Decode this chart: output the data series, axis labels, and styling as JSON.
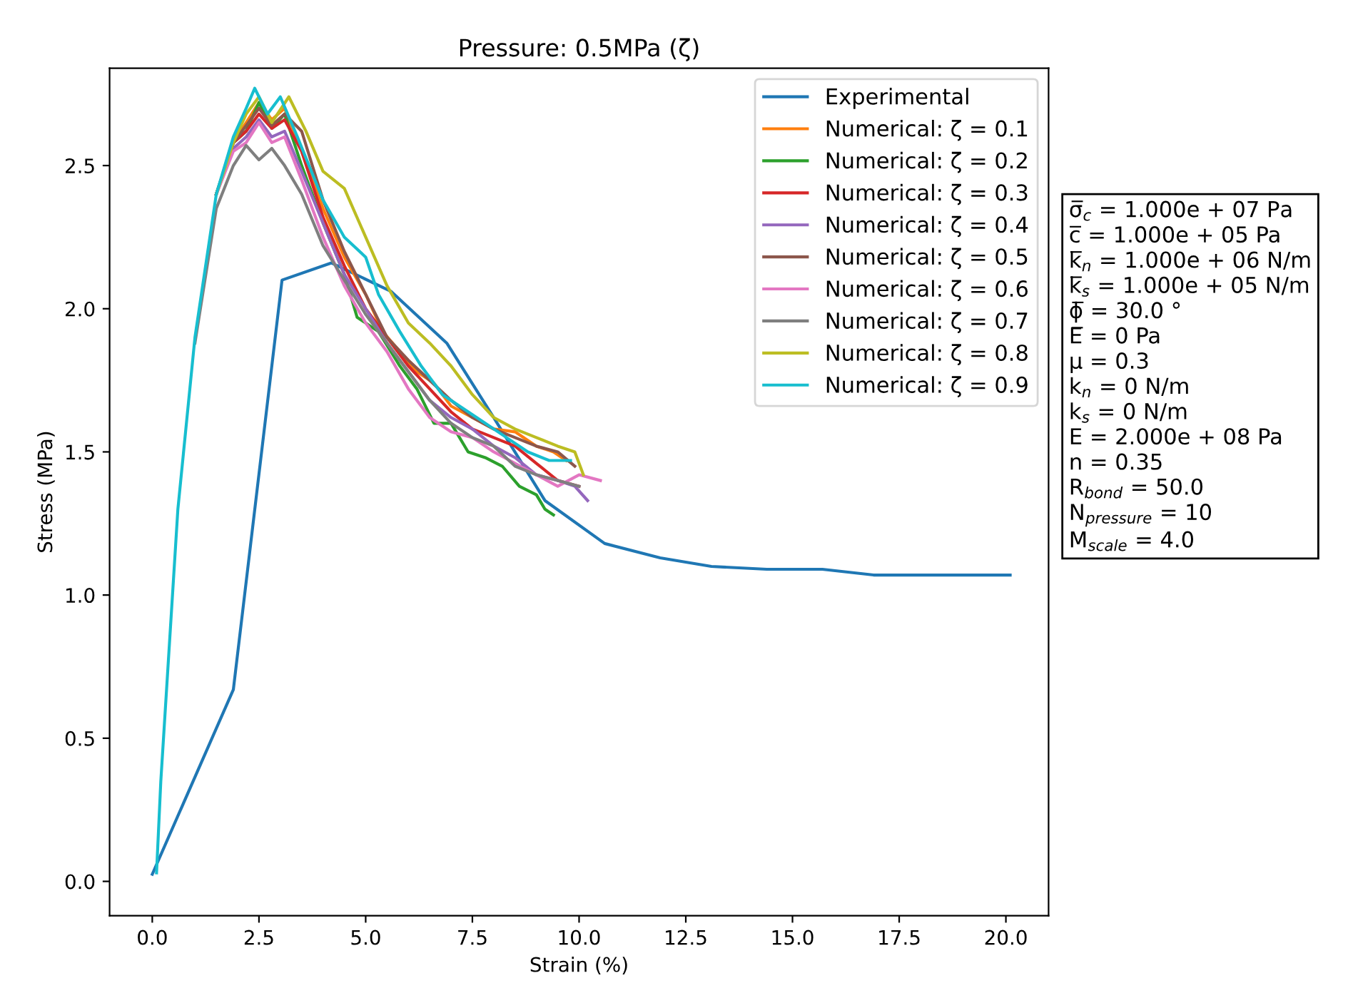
{
  "chart_data": {
    "type": "line",
    "title": "Pressure: 0.5MPa (ζ)",
    "xlabel": "Strain (%)",
    "ylabel": "Stress (MPa)",
    "xlim": [
      -1.0,
      21.0
    ],
    "ylim": [
      -0.12,
      2.84
    ],
    "xticks": [
      {
        "value": 0,
        "label": "0.0"
      },
      {
        "value": 2.5,
        "label": "2.5"
      },
      {
        "value": 5,
        "label": "5.0"
      },
      {
        "value": 7.5,
        "label": "7.5"
      },
      {
        "value": 10,
        "label": "10.0"
      },
      {
        "value": 12.5,
        "label": "12.5"
      },
      {
        "value": 15,
        "label": "15.0"
      },
      {
        "value": 17.5,
        "label": "17.5"
      },
      {
        "value": 20,
        "label": "20.0"
      }
    ],
    "yticks": [
      {
        "value": 0,
        "label": "0.0"
      },
      {
        "value": 0.5,
        "label": "0.5"
      },
      {
        "value": 1,
        "label": "1.0"
      },
      {
        "value": 1.5,
        "label": "1.5"
      },
      {
        "value": 2,
        "label": "2.0"
      },
      {
        "value": 2.5,
        "label": "2.5"
      }
    ],
    "grid": false,
    "legend": "top right",
    "marker": "none",
    "line_style": "solid",
    "series": [
      {
        "name": "Experimental",
        "color": "#1f77b4",
        "x": [
          0.0,
          1.9,
          3.04,
          4.2,
          5.6,
          6.9,
          8.0,
          9.2,
          10.6,
          11.9,
          13.1,
          14.4,
          15.7,
          16.9,
          18.3,
          19.5,
          20.1
        ],
        "values": [
          0.025,
          0.67,
          2.1,
          2.16,
          2.06,
          1.88,
          1.62,
          1.33,
          1.18,
          1.13,
          1.1,
          1.09,
          1.09,
          1.07,
          1.07,
          1.07,
          1.07
        ]
      },
      {
        "name": "Numerical: ζ = 0.1",
        "color": "#ff7f0e",
        "x": [
          1.5,
          1.9,
          2.2,
          2.5,
          2.8,
          3.1,
          3.5,
          4.0,
          4.5,
          5.0,
          5.4,
          5.8,
          6.2,
          6.6,
          7.0,
          7.5,
          8.0,
          8.5,
          9.0,
          9.4,
          9.7
        ],
        "values": [
          2.4,
          2.58,
          2.65,
          2.72,
          2.66,
          2.7,
          2.55,
          2.35,
          2.18,
          2.05,
          1.92,
          1.85,
          1.78,
          1.74,
          1.66,
          1.62,
          1.58,
          1.57,
          1.52,
          1.5,
          1.47
        ]
      },
      {
        "name": "Numerical: ζ = 0.2",
        "color": "#2ca02c",
        "x": [
          1.5,
          1.9,
          2.2,
          2.5,
          2.8,
          3.1,
          3.5,
          4.0,
          4.5,
          4.8,
          5.3,
          5.8,
          6.2,
          6.6,
          7.0,
          7.4,
          7.8,
          8.2,
          8.6,
          9.0,
          9.2,
          9.4
        ],
        "values": [
          2.4,
          2.58,
          2.62,
          2.72,
          2.63,
          2.68,
          2.5,
          2.3,
          2.12,
          1.97,
          1.92,
          1.8,
          1.72,
          1.6,
          1.6,
          1.5,
          1.48,
          1.45,
          1.38,
          1.35,
          1.3,
          1.28
        ]
      },
      {
        "name": "Numerical: ζ = 0.3",
        "color": "#d62728",
        "x": [
          1.5,
          1.9,
          2.2,
          2.5,
          2.8,
          3.1,
          3.5,
          4.0,
          4.5,
          5.0,
          5.5,
          6.0,
          6.5,
          7.0,
          7.5,
          8.0,
          8.5,
          9.0,
          9.5,
          10.0
        ],
        "values": [
          2.4,
          2.58,
          2.62,
          2.68,
          2.63,
          2.66,
          2.55,
          2.32,
          2.15,
          2.0,
          1.9,
          1.8,
          1.72,
          1.64,
          1.58,
          1.55,
          1.52,
          1.46,
          1.4,
          1.38
        ]
      },
      {
        "name": "Numerical: ζ = 0.4",
        "color": "#9467bd",
        "x": [
          1.5,
          1.9,
          2.2,
          2.5,
          2.8,
          3.1,
          3.5,
          4.0,
          4.5,
          5.0,
          5.5,
          6.0,
          6.5,
          7.0,
          7.5,
          8.0,
          8.5,
          9.0,
          9.5,
          9.9,
          10.2
        ],
        "values": [
          2.4,
          2.56,
          2.6,
          2.66,
          2.6,
          2.62,
          2.48,
          2.3,
          2.12,
          2.0,
          1.88,
          1.78,
          1.68,
          1.62,
          1.58,
          1.52,
          1.48,
          1.42,
          1.4,
          1.38,
          1.33
        ]
      },
      {
        "name": "Numerical: ζ = 0.5",
        "color": "#8c564b",
        "x": [
          1.5,
          1.9,
          2.2,
          2.5,
          2.8,
          3.1,
          3.5,
          4.0,
          4.5,
          5.0,
          5.5,
          6.0,
          6.5,
          7.0,
          7.5,
          8.0,
          8.5,
          9.0,
          9.5,
          9.9
        ],
        "values": [
          2.4,
          2.58,
          2.64,
          2.7,
          2.64,
          2.68,
          2.62,
          2.38,
          2.2,
          2.05,
          1.9,
          1.82,
          1.75,
          1.68,
          1.62,
          1.58,
          1.55,
          1.52,
          1.5,
          1.45
        ]
      },
      {
        "name": "Numerical: ζ = 0.6",
        "color": "#e377c2",
        "x": [
          1.5,
          1.9,
          2.2,
          2.5,
          2.8,
          3.1,
          3.5,
          4.0,
          4.5,
          5.0,
          5.5,
          6.0,
          6.5,
          7.0,
          7.5,
          8.0,
          8.5,
          9.0,
          9.5,
          10.0,
          10.5
        ],
        "values": [
          2.4,
          2.55,
          2.58,
          2.65,
          2.58,
          2.6,
          2.45,
          2.25,
          2.08,
          1.95,
          1.85,
          1.72,
          1.62,
          1.57,
          1.55,
          1.5,
          1.46,
          1.42,
          1.38,
          1.42,
          1.4
        ]
      },
      {
        "name": "Numerical: ζ = 0.7",
        "color": "#7f7f7f",
        "x": [
          1.0,
          1.5,
          1.9,
          2.2,
          2.5,
          2.8,
          3.1,
          3.5,
          4.0,
          4.5,
          5.0,
          5.5,
          6.0,
          6.5,
          7.0,
          7.5,
          8.0,
          8.5,
          9.0,
          9.5,
          10.0
        ],
        "values": [
          1.88,
          2.35,
          2.5,
          2.57,
          2.52,
          2.56,
          2.5,
          2.4,
          2.22,
          2.1,
          1.98,
          1.88,
          1.78,
          1.68,
          1.6,
          1.55,
          1.52,
          1.45,
          1.42,
          1.4,
          1.38
        ]
      },
      {
        "name": "Numerical: ζ = 0.8",
        "color": "#bcbd22",
        "x": [
          1.5,
          1.9,
          2.2,
          2.5,
          2.8,
          3.2,
          3.6,
          4.0,
          4.5,
          5.0,
          5.5,
          6.0,
          6.5,
          7.0,
          7.5,
          8.0,
          8.5,
          9.0,
          9.5,
          9.9,
          10.1
        ],
        "values": [
          2.4,
          2.58,
          2.68,
          2.74,
          2.65,
          2.74,
          2.62,
          2.48,
          2.42,
          2.25,
          2.08,
          1.95,
          1.88,
          1.8,
          1.7,
          1.62,
          1.58,
          1.55,
          1.52,
          1.5,
          1.42
        ]
      },
      {
        "name": "Numerical: ζ = 0.9",
        "color": "#17becf",
        "x": [
          0.1,
          0.2,
          0.6,
          1.0,
          1.5,
          1.9,
          2.2,
          2.4,
          2.7,
          3.0,
          3.4,
          4.0,
          4.5,
          5.0,
          5.3,
          5.8,
          6.3,
          6.8,
          7.3,
          7.8,
          8.3,
          8.8,
          9.3,
          9.8
        ],
        "values": [
          0.03,
          0.35,
          1.3,
          1.9,
          2.4,
          2.6,
          2.7,
          2.77,
          2.68,
          2.74,
          2.6,
          2.38,
          2.25,
          2.18,
          2.05,
          1.92,
          1.8,
          1.7,
          1.65,
          1.6,
          1.55,
          1.5,
          1.47,
          1.47
        ]
      }
    ],
    "annotations": [
      "σ̅$_{c}$ = 1.000e + 07 Pa",
      "c̅ = 1.000e + 05 Pa",
      "k̅$_{n}$ = 1.000e + 06 N/m",
      "k̅$_{s}$ = 1.000e + 05 N/m",
      "ϕ̅ = 30.0 °",
      "E̅ = 0 Pa",
      "μ = 0.3",
      "k$_{n}$ = 0 N/m",
      "k$_{s}$ = 0 N/m",
      "E = 2.000e + 08 Pa",
      "n = 0.35",
      "R$_{bond}$ = 50.0",
      "N$_{pressure}$ = 10",
      "M$_{scale}$ = 4.0"
    ]
  }
}
